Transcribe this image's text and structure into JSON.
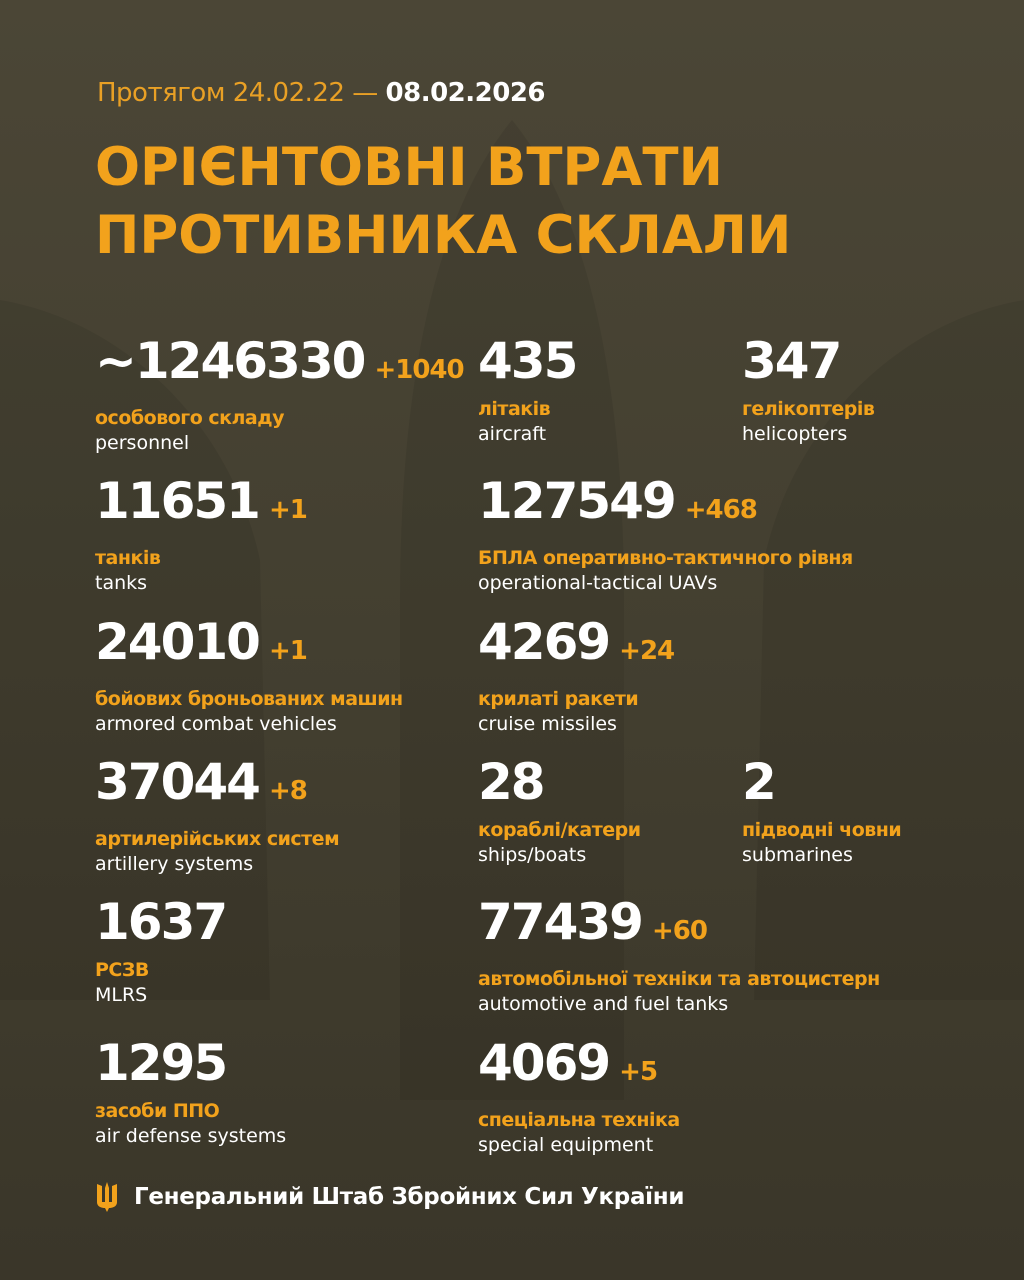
{
  "header": {
    "period_prefix": "Протягом 24.02.22 —",
    "period_end": "08.02.2026",
    "title_line1": "ОРІЄНТОВНІ ВТРАТИ",
    "title_line2": "ПРОТИВНИКА СКЛАЛИ"
  },
  "stats": [
    {
      "value": "~1246330",
      "delta": "+1040",
      "ua": "особового складу",
      "en": "personnel"
    },
    {
      "value": "435",
      "delta": "",
      "ua": "літаків",
      "en": "aircraft"
    },
    {
      "value": "347",
      "delta": "",
      "ua": "гелікоптерів",
      "en": "helicopters"
    },
    {
      "value": "11651",
      "delta": "+1",
      "ua": "танків",
      "en": "tanks"
    },
    {
      "value": "127549",
      "delta": "+468",
      "ua": "БПЛА оперативно-тактичного рівня",
      "en": "operational-tactical UAVs"
    },
    {
      "value": "24010",
      "delta": "+1",
      "ua": "бойових броньованих машин",
      "en": "armored combat vehicles"
    },
    {
      "value": "4269",
      "delta": "+24",
      "ua": "крилаті ракети",
      "en": "cruise missiles"
    },
    {
      "value": "37044",
      "delta": "+8",
      "ua": "артилерійських систем",
      "en": "artillery systems"
    },
    {
      "value": "28",
      "delta": "",
      "ua": "кораблі/катери",
      "en": "ships/boats"
    },
    {
      "value": "2",
      "delta": "",
      "ua": "підводні човни",
      "en": "submarines"
    },
    {
      "value": "1637",
      "delta": "",
      "ua": "РСЗВ",
      "en": "MLRS"
    },
    {
      "value": "77439",
      "delta": "+60",
      "ua": "автомобільної техніки та автоцистерн",
      "en": "automotive and fuel tanks"
    },
    {
      "value": "1295",
      "delta": "",
      "ua": "засоби ППО",
      "en": "air defense systems"
    },
    {
      "value": "4069",
      "delta": "+5",
      "ua": "спеціальна техніка",
      "en": "special equipment"
    }
  ],
  "footer": {
    "text": "Генеральний Штаб Збройних Сил України",
    "icon": "trident-icon"
  },
  "colors": {
    "accent": "#f2a21c",
    "background": "#464132",
    "text": "#ffffff"
  }
}
